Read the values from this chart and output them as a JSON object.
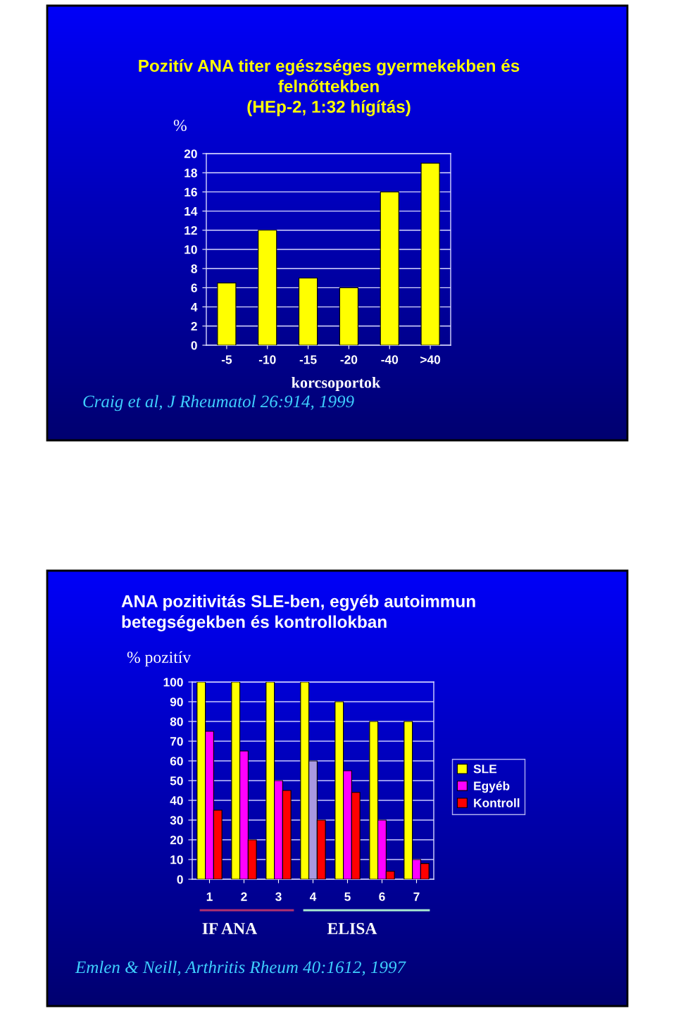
{
  "chart_data": [
    {
      "type": "bar",
      "title": "Pozitív ANA titer egészséges gyermekekben és\nfelnőttekben\n(HEp-2, 1:32 hígítás)",
      "ylabel": "%",
      "xlabel": "korcsoportok",
      "categories": [
        "-5",
        "-10",
        "-15",
        "-20",
        "-40",
        ">40"
      ],
      "values": [
        6.5,
        12,
        7,
        6,
        16,
        19
      ],
      "color": "#ffff00",
      "ylim": [
        0,
        20
      ],
      "yticks": [
        0,
        2,
        4,
        6,
        8,
        10,
        12,
        14,
        16,
        18,
        20
      ],
      "grid": "y",
      "annotations": [
        "Craig et al, J Rheumatol 26:914, 1999"
      ]
    },
    {
      "type": "bar",
      "title": "ANA pozitivitás SLE-ben, egyéb autoimmun\nbetegségekben és kontrollokban",
      "ylabel": "% pozitív",
      "categories": [
        "1",
        "2",
        "3",
        "4",
        "5",
        "6",
        "7"
      ],
      "series": [
        {
          "name": "SLE",
          "color": "#ffff00",
          "values": [
            100,
            100,
            100,
            100,
            90,
            80,
            80
          ]
        },
        {
          "name": "Egyéb",
          "color": "#ff00ff",
          "colors": [
            "#ff00ff",
            "#ff00ff",
            "#ff00ff",
            "#a898e0",
            "#ff00ff",
            "#ff00ff",
            "#ff00ff"
          ],
          "values": [
            75,
            65,
            50,
            60,
            55,
            30,
            10
          ]
        },
        {
          "name": "Kontroll",
          "color": "#ff0000",
          "values": [
            35,
            20,
            45,
            30,
            44,
            4,
            8
          ]
        }
      ],
      "ylim": [
        0,
        100
      ],
      "yticks": [
        0,
        10,
        20,
        30,
        40,
        50,
        60,
        70,
        80,
        90,
        100
      ],
      "grid": "y",
      "legend": "right",
      "annotations": [
        "IF ANA",
        "ELISA",
        "Emlen & Neill, Arthritis Rheum 40:1612, 1997"
      ]
    }
  ]
}
